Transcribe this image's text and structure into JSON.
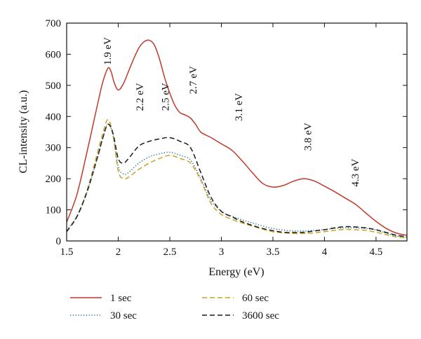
{
  "chart_data": {
    "type": "line",
    "xlabel": "Energy (eV)",
    "ylabel": "CL-intensity (a.u.)",
    "xlim": [
      1.5,
      4.8
    ],
    "ylim": [
      0,
      700
    ],
    "xticks": [
      1.5,
      2,
      2.5,
      3,
      3.5,
      4,
      4.5
    ],
    "xtick_labels": [
      "1.5",
      "2",
      "2.5",
      "3",
      "3.5",
      "4",
      "4.5"
    ],
    "yticks": [
      0,
      100,
      200,
      300,
      400,
      500,
      600,
      700
    ],
    "ytick_labels": [
      "0",
      "100",
      "200",
      "300",
      "400",
      "500",
      "600",
      "700"
    ],
    "grid": false,
    "legend_position": "below",
    "series": [
      {
        "name": "1 sec",
        "color": "#c0392b",
        "style": "solid",
        "x": [
          1.5,
          1.6,
          1.7,
          1.8,
          1.85,
          1.9,
          1.93,
          1.96,
          2.0,
          2.05,
          2.1,
          2.15,
          2.2,
          2.25,
          2.3,
          2.35,
          2.4,
          2.45,
          2.5,
          2.55,
          2.6,
          2.65,
          2.7,
          2.75,
          2.8,
          2.9,
          3.0,
          3.1,
          3.2,
          3.3,
          3.4,
          3.5,
          3.6,
          3.7,
          3.8,
          3.9,
          4.0,
          4.1,
          4.2,
          4.3,
          4.4,
          4.5,
          4.6,
          4.7,
          4.8
        ],
        "y": [
          60,
          150,
          290,
          440,
          510,
          555,
          545,
          510,
          485,
          505,
          545,
          585,
          620,
          640,
          645,
          630,
          585,
          525,
          475,
          435,
          412,
          405,
          395,
          375,
          350,
          332,
          312,
          292,
          258,
          220,
          185,
          173,
          178,
          192,
          200,
          193,
          176,
          158,
          138,
          118,
          90,
          63,
          40,
          25,
          18
        ]
      },
      {
        "name": "30 sec",
        "color": "#1f6f8b",
        "style": "dotted",
        "x": [
          1.5,
          1.6,
          1.7,
          1.8,
          1.85,
          1.9,
          1.95,
          2.0,
          2.05,
          2.1,
          2.2,
          2.3,
          2.4,
          2.5,
          2.6,
          2.7,
          2.8,
          2.9,
          3.0,
          3.1,
          3.2,
          3.3,
          3.4,
          3.5,
          3.6,
          3.7,
          3.8,
          3.9,
          4.0,
          4.1,
          4.2,
          4.3,
          4.4,
          4.5,
          4.6,
          4.7,
          4.8
        ],
        "y": [
          35,
          80,
          160,
          270,
          330,
          375,
          340,
          240,
          215,
          220,
          250,
          270,
          280,
          285,
          275,
          260,
          200,
          130,
          95,
          80,
          68,
          58,
          48,
          40,
          35,
          32,
          32,
          34,
          37,
          40,
          42,
          42,
          40,
          35,
          25,
          16,
          12
        ]
      },
      {
        "name": "60 sec",
        "color": "#c9a227",
        "style": "dashed",
        "x": [
          1.5,
          1.6,
          1.7,
          1.8,
          1.85,
          1.9,
          1.95,
          2.0,
          2.05,
          2.1,
          2.2,
          2.3,
          2.4,
          2.5,
          2.6,
          2.7,
          2.8,
          2.9,
          3.0,
          3.1,
          3.2,
          3.3,
          3.4,
          3.5,
          3.6,
          3.7,
          3.8,
          3.9,
          4.0,
          4.1,
          4.2,
          4.3,
          4.4,
          4.5,
          4.6,
          4.7,
          4.8
        ],
        "y": [
          30,
          80,
          165,
          285,
          345,
          390,
          340,
          225,
          200,
          205,
          230,
          250,
          265,
          275,
          265,
          250,
          195,
          120,
          85,
          70,
          58,
          48,
          38,
          30,
          26,
          24,
          24,
          26,
          30,
          34,
          37,
          36,
          34,
          28,
          20,
          13,
          10
        ]
      },
      {
        "name": "3600 sec",
        "color": "#1a1a1a",
        "style": "dashed",
        "x": [
          1.5,
          1.6,
          1.7,
          1.8,
          1.85,
          1.9,
          1.95,
          2.0,
          2.05,
          2.1,
          2.2,
          2.3,
          2.4,
          2.5,
          2.6,
          2.7,
          2.8,
          2.9,
          3.0,
          3.1,
          3.2,
          3.3,
          3.4,
          3.5,
          3.6,
          3.7,
          3.8,
          3.9,
          4.0,
          4.1,
          4.2,
          4.3,
          4.4,
          4.5,
          4.6,
          4.7,
          4.8
        ],
        "y": [
          30,
          78,
          160,
          270,
          330,
          375,
          345,
          265,
          250,
          265,
          305,
          320,
          328,
          332,
          320,
          300,
          220,
          140,
          95,
          78,
          62,
          50,
          40,
          33,
          28,
          27,
          28,
          32,
          36,
          42,
          46,
          45,
          42,
          36,
          27,
          18,
          14
        ]
      }
    ],
    "annotations": [
      {
        "text": "1.9 eV",
        "x": 1.93,
        "y": 565
      },
      {
        "text": "2.2 eV",
        "x": 2.24,
        "y": 418
      },
      {
        "text": "2.5 eV",
        "x": 2.49,
        "y": 418
      },
      {
        "text": "2.7 eV",
        "x": 2.76,
        "y": 472
      },
      {
        "text": "3.1 eV",
        "x": 3.2,
        "y": 385
      },
      {
        "text": "3.8 eV",
        "x": 3.87,
        "y": 290
      },
      {
        "text": "4.3 eV",
        "x": 4.33,
        "y": 174
      }
    ]
  }
}
